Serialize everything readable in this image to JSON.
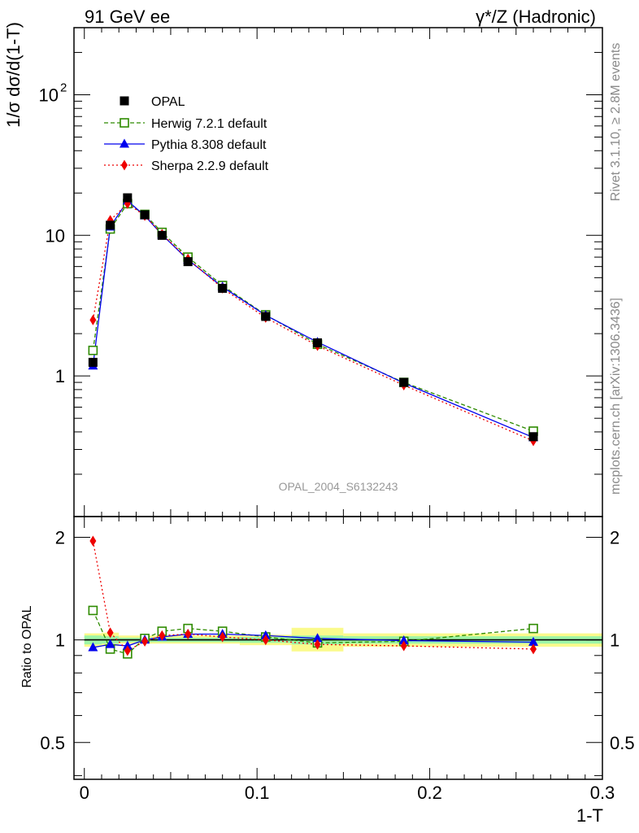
{
  "header": {
    "left": "91 GeV ee",
    "right": "γ*/Z (Hadronic)"
  },
  "side_labels": {
    "rivet": "Rivet 3.1.10, ≥ 2.8M events",
    "mcplots": "mcplots.cern.ch [arXiv:1306.3436]"
  },
  "analysis_id": "OPAL_2004_S6132243",
  "colors": {
    "opal": "#000000",
    "herwig": "#2e8b00",
    "pythia": "#0000ee",
    "sherpa": "#ee0000",
    "band_inner": "#9df5a8",
    "band_outer": "#fafa8c"
  },
  "chart_data": [
    {
      "type": "line",
      "panel": "main",
      "ylabel": "1/σ dσ/d(1-T)",
      "yscale": "log",
      "xlim": [
        -0.006,
        0.3
      ],
      "ylim": [
        0.1,
        300
      ],
      "y_tick_labels": [
        {
          "value": 1,
          "label": "1"
        },
        {
          "value": 10,
          "label": "10"
        },
        {
          "value": 100,
          "label": "10",
          "sup": "2"
        }
      ],
      "legend_position": "top-left",
      "series": [
        {
          "name": "OPAL",
          "key": "opal",
          "marker": "square-filled",
          "x": [
            0.005,
            0.015,
            0.025,
            0.035,
            0.045,
            0.06,
            0.08,
            0.105,
            0.135,
            0.185,
            0.26
          ],
          "y": [
            1.25,
            11.8,
            18.5,
            14.0,
            10.0,
            6.5,
            4.2,
            2.65,
            1.72,
            0.9,
            0.37
          ]
        },
        {
          "name": "Herwig 7.2.1 default",
          "key": "herwig",
          "marker": "square-open",
          "dash": "5,3",
          "x": [
            0.005,
            0.015,
            0.025,
            0.035,
            0.045,
            0.06,
            0.08,
            0.105,
            0.135,
            0.185,
            0.26
          ],
          "y": [
            1.52,
            11.1,
            16.8,
            14.1,
            10.5,
            7.0,
            4.4,
            2.72,
            1.68,
            0.9,
            0.405
          ]
        },
        {
          "name": "Pythia 8.308 default",
          "key": "pythia",
          "marker": "triangle-filled",
          "dash": "",
          "x": [
            0.005,
            0.015,
            0.025,
            0.035,
            0.045,
            0.06,
            0.08,
            0.105,
            0.135,
            0.185,
            0.26
          ],
          "y": [
            1.18,
            11.5,
            17.6,
            13.8,
            10.1,
            6.7,
            4.3,
            2.7,
            1.74,
            0.89,
            0.365
          ]
        },
        {
          "name": "Sherpa 2.2.9 default",
          "key": "sherpa",
          "marker": "diamond-filled",
          "dash": "2,3",
          "x": [
            0.005,
            0.015,
            0.025,
            0.035,
            0.045,
            0.06,
            0.08,
            0.105,
            0.135,
            0.185,
            0.26
          ],
          "y": [
            2.5,
            12.8,
            16.8,
            13.8,
            10.2,
            6.8,
            4.2,
            2.6,
            1.64,
            0.86,
            0.345
          ]
        }
      ]
    },
    {
      "type": "line",
      "panel": "ratio",
      "ylabel": "Ratio to OPAL",
      "xlabel": "1-T",
      "yscale": "log",
      "xlim": [
        -0.006,
        0.3
      ],
      "ylim": [
        0.39,
        2.3
      ],
      "x_tick_labels": [
        {
          "value": 0,
          "label": "0"
        },
        {
          "value": 0.1,
          "label": "0.1"
        },
        {
          "value": 0.2,
          "label": "0.2"
        },
        {
          "value": 0.3,
          "label": "0.3"
        }
      ],
      "y_tick_labels": [
        {
          "value": 0.5,
          "label": "0.5"
        },
        {
          "value": 1,
          "label": "1"
        },
        {
          "value": 2,
          "label": "2"
        }
      ],
      "uncertainty_bins": [
        {
          "x0": 0.0,
          "x1": 0.01,
          "inner": [
            0.97,
            1.03
          ],
          "outer": [
            0.955,
            1.045
          ]
        },
        {
          "x0": 0.01,
          "x1": 0.02,
          "inner": [
            0.975,
            1.025
          ],
          "outer": [
            0.96,
            1.05
          ]
        },
        {
          "x0": 0.02,
          "x1": 0.09,
          "inner": [
            0.985,
            1.015
          ],
          "outer": [
            0.975,
            1.03
          ]
        },
        {
          "x0": 0.09,
          "x1": 0.12,
          "inner": [
            0.98,
            1.02
          ],
          "outer": [
            0.965,
            1.035
          ]
        },
        {
          "x0": 0.12,
          "x1": 0.15,
          "inner": [
            0.97,
            1.03
          ],
          "outer": [
            0.925,
            1.085
          ]
        },
        {
          "x0": 0.15,
          "x1": 0.3,
          "inner": [
            0.975,
            1.025
          ],
          "outer": [
            0.955,
            1.045
          ]
        }
      ],
      "series": [
        {
          "key": "herwig",
          "marker": "square-open",
          "dash": "5,3",
          "x": [
            0.005,
            0.015,
            0.025,
            0.035,
            0.045,
            0.06,
            0.08,
            0.105,
            0.135,
            0.185,
            0.26
          ],
          "y": [
            1.22,
            0.94,
            0.91,
            1.01,
            1.06,
            1.08,
            1.06,
            1.02,
            0.98,
            0.99,
            1.08
          ]
        },
        {
          "key": "pythia",
          "marker": "triangle-filled",
          "dash": "",
          "x": [
            0.005,
            0.015,
            0.025,
            0.035,
            0.045,
            0.06,
            0.08,
            0.105,
            0.135,
            0.185,
            0.26
          ],
          "y": [
            0.95,
            0.97,
            0.96,
            1.0,
            1.02,
            1.04,
            1.04,
            1.03,
            1.01,
            0.995,
            0.985
          ]
        },
        {
          "key": "sherpa",
          "marker": "diamond-filled",
          "dash": "2,3",
          "x": [
            0.005,
            0.015,
            0.025,
            0.035,
            0.045,
            0.06,
            0.08,
            0.105,
            0.135,
            0.185,
            0.26
          ],
          "y": [
            1.95,
            1.05,
            0.93,
            0.99,
            1.03,
            1.04,
            1.02,
            1.0,
            0.97,
            0.96,
            0.94
          ]
        }
      ]
    }
  ]
}
